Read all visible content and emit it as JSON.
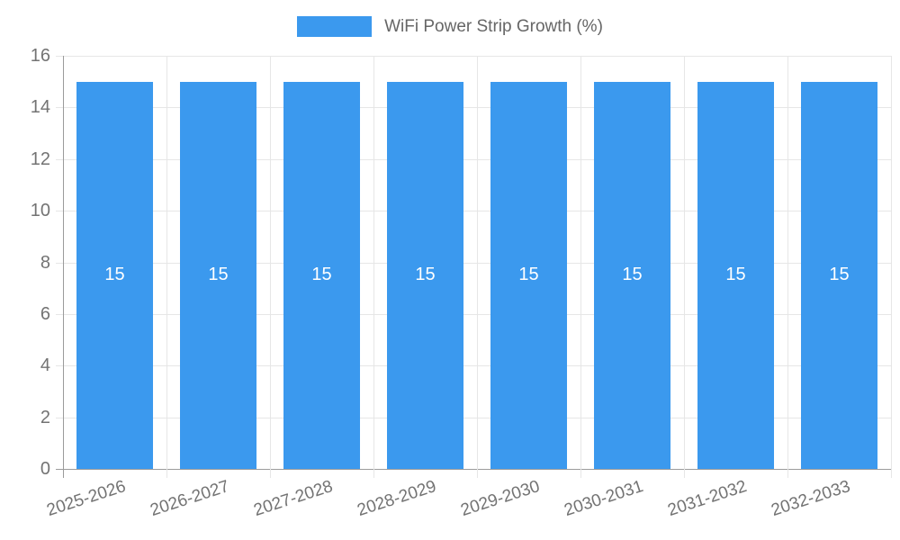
{
  "legend": {
    "label": "WiFi Power Strip Growth (%)"
  },
  "chart_data": {
    "type": "bar",
    "title": "WiFi Power Strip Growth (%)",
    "categories": [
      "2025-2026",
      "2026-2027",
      "2027-2028",
      "2028-2029",
      "2029-2030",
      "2030-2031",
      "2031-2032",
      "2032-2033"
    ],
    "values": [
      15,
      15,
      15,
      15,
      15,
      15,
      15,
      15
    ],
    "bar_value_labels": [
      "15",
      "15",
      "15",
      "15",
      "15",
      "15",
      "15",
      "15"
    ],
    "xlabel": "",
    "ylabel": "",
    "ylim": [
      0,
      16
    ],
    "yticks": [
      0,
      2,
      4,
      6,
      8,
      10,
      12,
      14,
      16
    ],
    "grid": true,
    "legend_position": "top-center"
  },
  "colors": {
    "bar": "#3b99ee",
    "grid": "#e6e6e6",
    "axis": "#9b9b9b",
    "tick_label": "#737373",
    "legend_text": "#666666",
    "bar_label": "#ffffff"
  }
}
